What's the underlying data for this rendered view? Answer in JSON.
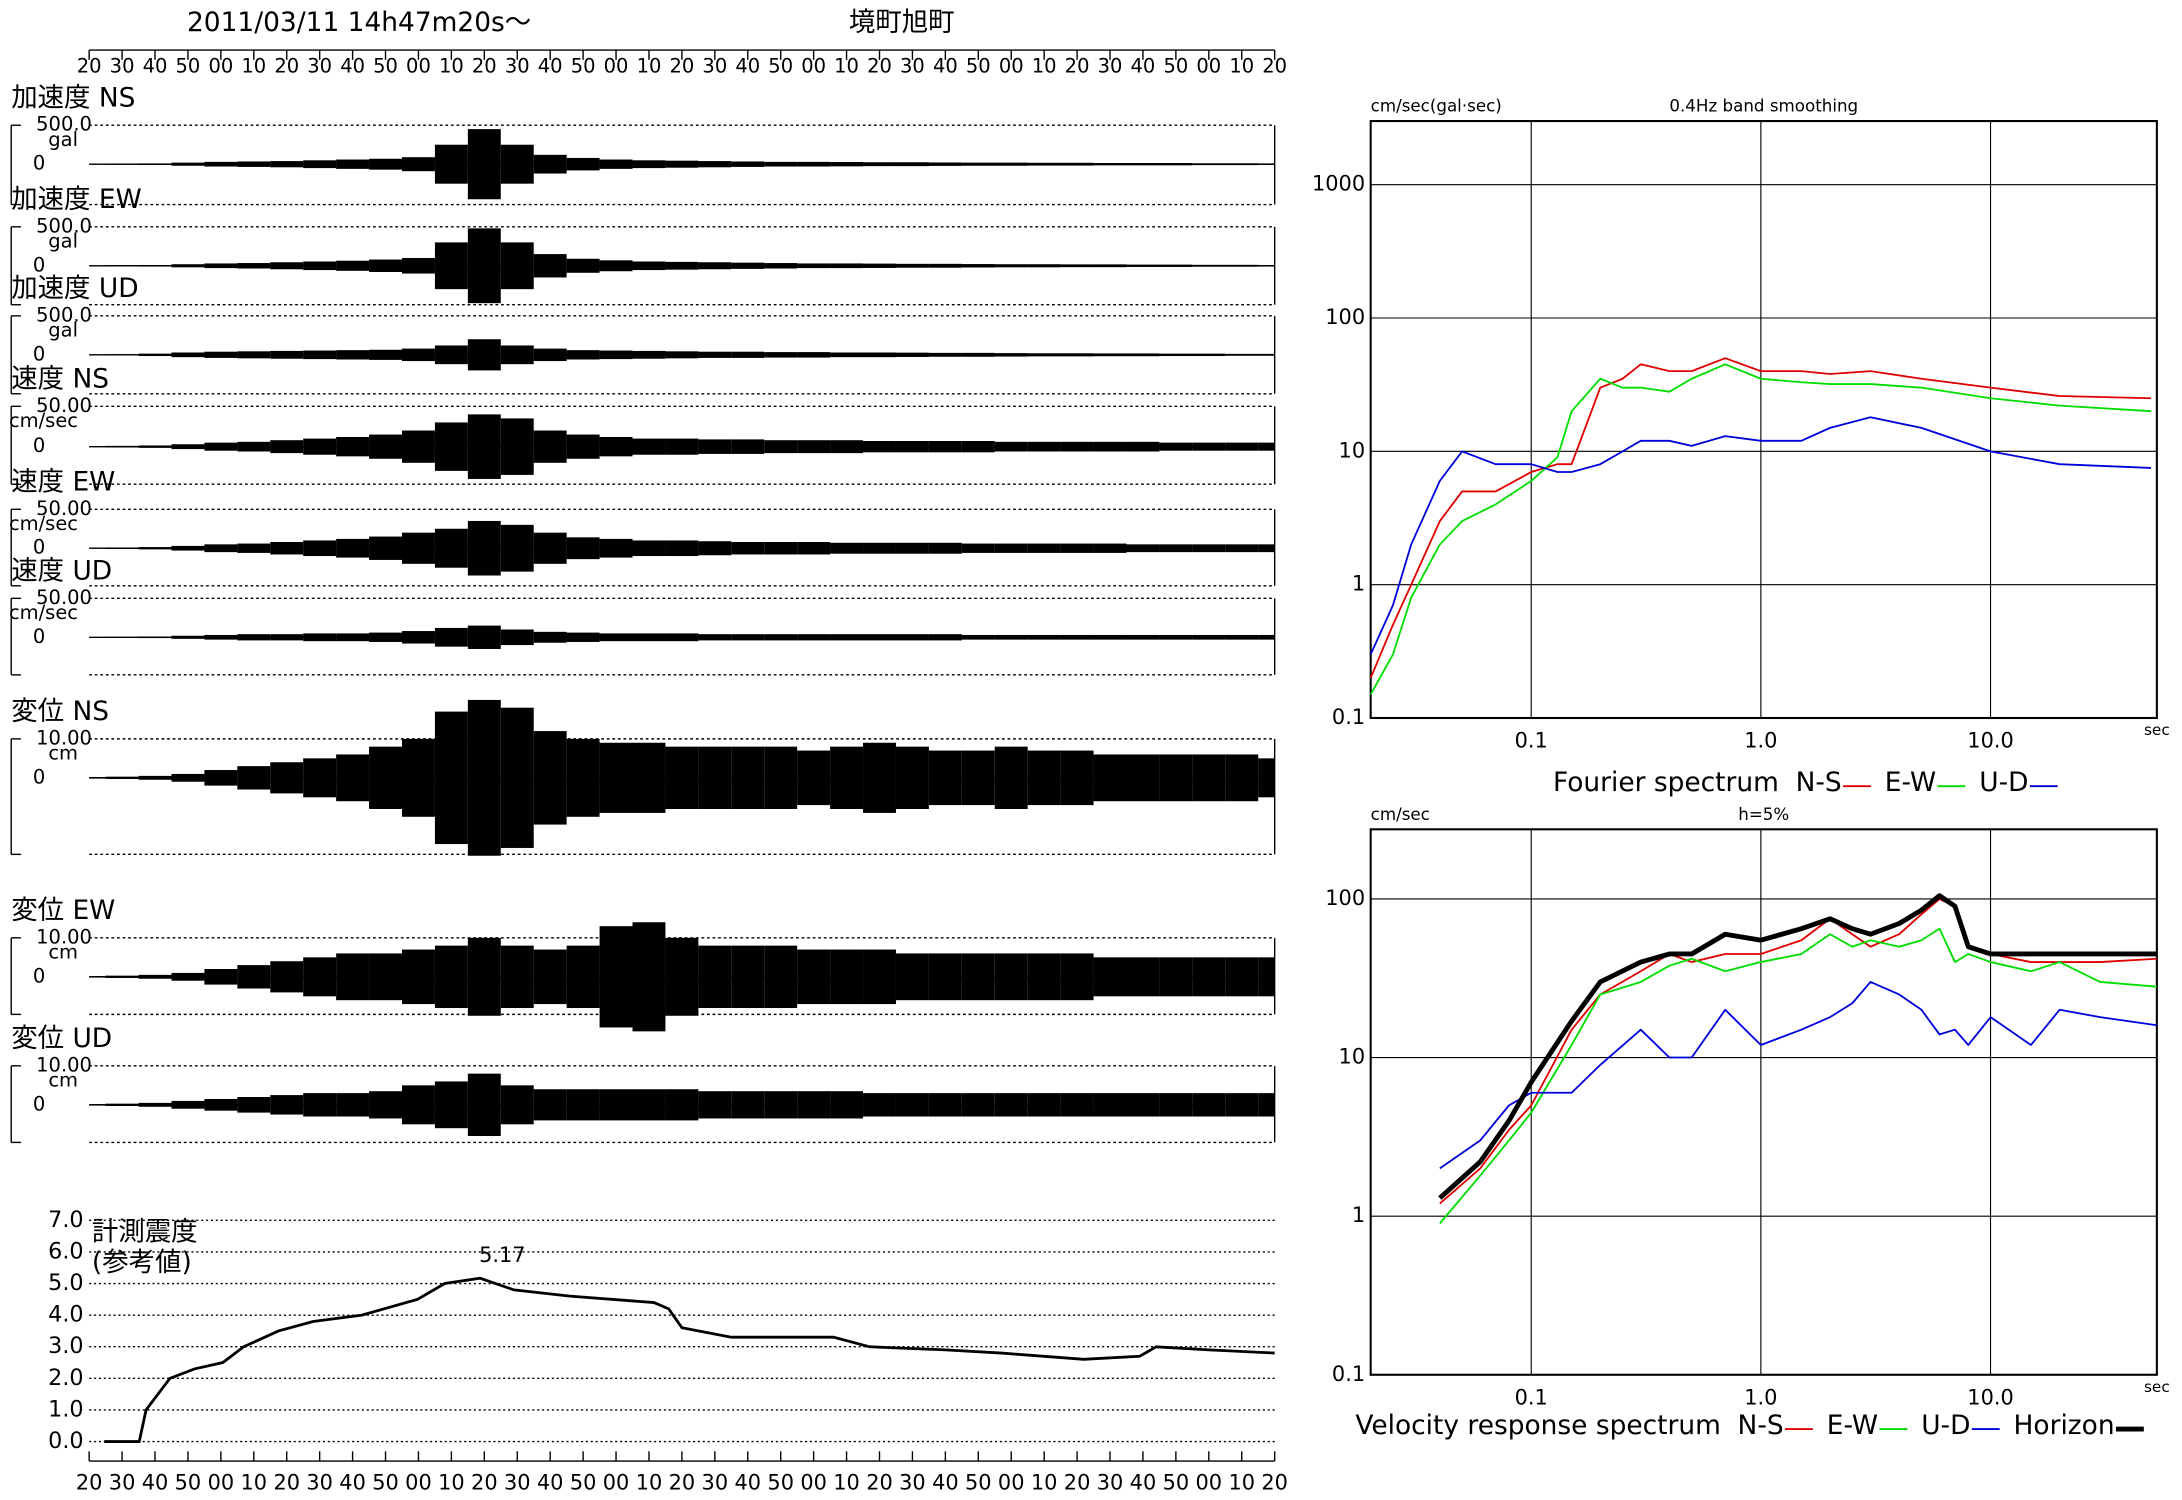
{
  "chart_data": [
    {
      "type": "waveform",
      "title": "2011/03/11  14h47m20s～",
      "subtitle": "境町旭町",
      "xlim": [
        0,
        360
      ],
      "xticks": [
        {
          "value": 0,
          "label": "20"
        },
        {
          "value": 10,
          "label": "30"
        },
        {
          "value": 20,
          "label": "40"
        },
        {
          "value": 30,
          "label": "50"
        },
        {
          "value": 40,
          "label": "00"
        },
        {
          "value": 50,
          "label": "10"
        },
        {
          "value": 60,
          "label": "20"
        },
        {
          "value": 70,
          "label": "30"
        },
        {
          "value": 80,
          "label": "40"
        },
        {
          "value": 90,
          "label": "50"
        },
        {
          "value": 100,
          "label": "00"
        },
        {
          "value": 110,
          "label": "10"
        },
        {
          "value": 120,
          "label": "20"
        },
        {
          "value": 130,
          "label": "30"
        },
        {
          "value": 140,
          "label": "40"
        },
        {
          "value": 150,
          "label": "50"
        },
        {
          "value": 160,
          "label": "00"
        },
        {
          "value": 170,
          "label": "10"
        },
        {
          "value": 180,
          "label": "20"
        },
        {
          "value": 190,
          "label": "30"
        },
        {
          "value": 200,
          "label": "40"
        },
        {
          "value": 210,
          "label": "50"
        },
        {
          "value": 220,
          "label": "00"
        },
        {
          "value": 230,
          "label": "10"
        },
        {
          "value": 240,
          "label": "20"
        },
        {
          "value": 250,
          "label": "30"
        },
        {
          "value": 260,
          "label": "40"
        },
        {
          "value": 270,
          "label": "50"
        },
        {
          "value": 280,
          "label": "00"
        },
        {
          "value": 290,
          "label": "10"
        },
        {
          "value": 300,
          "label": "20"
        },
        {
          "value": 310,
          "label": "30"
        },
        {
          "value": 320,
          "label": "40"
        },
        {
          "value": 330,
          "label": "50"
        },
        {
          "value": 340,
          "label": "00"
        },
        {
          "value": 350,
          "label": "10"
        },
        {
          "value": 360,
          "label": "20"
        }
      ],
      "x": [
        0,
        10,
        20,
        30,
        40,
        50,
        60,
        70,
        80,
        90,
        100,
        110,
        120,
        130,
        140,
        150,
        160,
        170,
        180,
        190,
        200,
        210,
        220,
        230,
        240,
        250,
        260,
        270,
        280,
        290,
        300,
        310,
        320,
        330,
        340,
        350,
        360
      ],
      "traces": [
        {
          "name": "加速度 NS",
          "scale": {
            "value": 500,
            "label": "500.0"
          },
          "unit": "gal",
          "zero": 0,
          "values": [
            5,
            8,
            10,
            20,
            30,
            35,
            40,
            50,
            60,
            70,
            90,
            250,
            450,
            250,
            120,
            80,
            60,
            50,
            45,
            40,
            35,
            30,
            30,
            28,
            25,
            25,
            22,
            20,
            20,
            18,
            18,
            15,
            15,
            15,
            12,
            12,
            10
          ]
        },
        {
          "name": "加速度 EW",
          "scale": {
            "value": 500,
            "label": "500.0"
          },
          "unit": "gal",
          "zero": 0,
          "values": [
            5,
            8,
            10,
            20,
            30,
            35,
            45,
            55,
            65,
            80,
            100,
            300,
            480,
            300,
            150,
            90,
            70,
            55,
            50,
            45,
            40,
            35,
            30,
            30,
            28,
            25,
            25,
            22,
            20,
            20,
            18,
            18,
            15,
            15,
            12,
            12,
            10
          ]
        },
        {
          "name": "加速度 UD",
          "scale": {
            "value": 500,
            "label": "500.0"
          },
          "unit": "gal",
          "zero": 0,
          "values": [
            5,
            8,
            15,
            30,
            40,
            45,
            50,
            55,
            60,
            65,
            80,
            120,
            200,
            120,
            80,
            60,
            55,
            50,
            45,
            40,
            40,
            35,
            35,
            30,
            30,
            28,
            25,
            25,
            22,
            20,
            20,
            18,
            18,
            15,
            15,
            12,
            12
          ]
        },
        {
          "name": "速度 NS",
          "scale": {
            "value": 50,
            "label": "50.00"
          },
          "unit": "cm/sec",
          "zero": 0,
          "values": [
            0.5,
            1,
            1.5,
            3,
            5,
            6,
            8,
            10,
            12,
            15,
            20,
            30,
            40,
            35,
            20,
            15,
            12,
            10,
            10,
            9,
            9,
            8,
            8,
            8,
            7,
            7,
            7,
            7,
            6,
            6,
            6,
            6,
            6,
            5,
            5,
            5,
            5
          ]
        },
        {
          "name": "速度 EW",
          "scale": {
            "value": 50,
            "label": "50.00"
          },
          "unit": "cm/sec",
          "zero": 0,
          "values": [
            0.5,
            1,
            1.5,
            3,
            5,
            6,
            8,
            10,
            12,
            15,
            20,
            25,
            35,
            30,
            20,
            14,
            12,
            10,
            10,
            9,
            8,
            8,
            8,
            7,
            7,
            7,
            7,
            6,
            6,
            6,
            6,
            6,
            5,
            5,
            5,
            5,
            5
          ]
        },
        {
          "name": "速度 UD",
          "scale": {
            "value": 50,
            "label": "50.00"
          },
          "unit": "cm/sec",
          "zero": 0,
          "values": [
            0.3,
            0.5,
            1,
            2,
            3,
            4,
            4,
            5,
            5,
            6,
            8,
            12,
            15,
            10,
            7,
            6,
            5,
            5,
            5,
            4,
            4,
            4,
            4,
            4,
            4,
            4,
            4,
            3,
            3,
            3,
            3,
            3,
            3,
            3,
            3,
            3,
            3
          ]
        },
        {
          "name": "変位 NS",
          "scale": {
            "value": 10,
            "label": "10.00"
          },
          "unit": "cm",
          "zero": 0,
          "values": [
            0.2,
            0.3,
            0.5,
            1,
            2,
            3,
            4,
            5,
            6,
            8,
            10,
            17,
            20,
            18,
            12,
            10,
            9,
            9,
            8,
            8,
            8,
            8,
            7,
            8,
            9,
            8,
            7,
            7,
            8,
            7,
            7,
            6,
            6,
            6,
            6,
            6,
            5
          ]
        },
        {
          "name": "変位 EW",
          "scale": {
            "value": 10,
            "label": "10.00"
          },
          "unit": "cm",
          "zero": 0,
          "values": [
            0.2,
            0.3,
            0.5,
            1,
            2,
            3,
            4,
            5,
            6,
            6,
            7,
            8,
            10,
            8,
            7,
            8,
            13,
            14,
            10,
            8,
            8,
            8,
            7,
            7,
            7,
            6,
            6,
            6,
            6,
            6,
            6,
            5,
            5,
            5,
            5,
            5,
            5
          ]
        },
        {
          "name": "変位 UD",
          "scale": {
            "value": 10,
            "label": "10.00"
          },
          "unit": "cm",
          "zero": 0,
          "values": [
            0.2,
            0.3,
            0.5,
            1,
            1.5,
            2,
            2.5,
            3,
            3,
            3.5,
            5,
            6,
            8,
            5,
            4,
            4,
            4,
            4,
            4,
            3.5,
            3.5,
            3.5,
            3.5,
            3.5,
            3,
            3,
            3,
            3,
            3,
            3,
            3,
            3,
            3,
            3,
            3,
            3,
            3
          ]
        }
      ]
    },
    {
      "type": "line",
      "title": [
        "計測震度",
        "(参考値)"
      ],
      "annotation": "5.17",
      "color": "#000000",
      "xlim": [
        0,
        360
      ],
      "xticks": [
        {
          "value": 0,
          "label": "20"
        },
        {
          "value": 10,
          "label": "30"
        },
        {
          "value": 20,
          "label": "40"
        },
        {
          "value": 30,
          "label": "50"
        },
        {
          "value": 40,
          "label": "00"
        },
        {
          "value": 50,
          "label": "10"
        },
        {
          "value": 60,
          "label": "20"
        },
        {
          "value": 70,
          "label": "30"
        },
        {
          "value": 80,
          "label": "40"
        },
        {
          "value": 90,
          "label": "50"
        },
        {
          "value": 100,
          "label": "00"
        },
        {
          "value": 110,
          "label": "10"
        },
        {
          "value": 120,
          "label": "20"
        },
        {
          "value": 130,
          "label": "30"
        },
        {
          "value": 140,
          "label": "40"
        },
        {
          "value": 150,
          "label": "50"
        },
        {
          "value": 160,
          "label": "00"
        },
        {
          "value": 170,
          "label": "10"
        },
        {
          "value": 180,
          "label": "20"
        },
        {
          "value": 190,
          "label": "30"
        },
        {
          "value": 200,
          "label": "40"
        },
        {
          "value": 210,
          "label": "50"
        },
        {
          "value": 220,
          "label": "00"
        },
        {
          "value": 230,
          "label": "10"
        },
        {
          "value": 240,
          "label": "20"
        },
        {
          "value": 250,
          "label": "30"
        },
        {
          "value": 260,
          "label": "40"
        },
        {
          "value": 270,
          "label": "50"
        },
        {
          "value": 280,
          "label": "00"
        },
        {
          "value": 290,
          "label": "10"
        },
        {
          "value": 300,
          "label": "20"
        },
        {
          "value": 310,
          "label": "30"
        },
        {
          "value": 320,
          "label": "40"
        },
        {
          "value": 330,
          "label": "50"
        },
        {
          "value": 340,
          "label": "00"
        },
        {
          "value": 350,
          "label": "10"
        },
        {
          "value": 360,
          "label": "20"
        }
      ],
      "ylim": [
        0,
        7
      ],
      "yticks": [
        {
          "value": 0,
          "label": "0.0"
        },
        {
          "value": 1,
          "label": "1.0"
        },
        {
          "value": 2,
          "label": "2.0"
        },
        {
          "value": 3,
          "label": "3.0"
        },
        {
          "value": 4,
          "label": "4.0"
        },
        {
          "value": 5,
          "label": "5.0"
        },
        {
          "value": 6,
          "label": "6.0"
        },
        {
          "value": 7,
          "label": "7.0"
        }
      ],
      "grid": true,
      "x": [
        4.6,
        15.2,
        17.3,
        24.5,
        32,
        40.6,
        46.9,
        57.5,
        68,
        82.8,
        99.7,
        108,
        118.7,
        129,
        146,
        171.5,
        176,
        180,
        195,
        226,
        237,
        260,
        277,
        302,
        319,
        324,
        340,
        360
      ],
      "values": [
        0,
        0,
        1.0,
        2.0,
        2.3,
        2.5,
        3.0,
        3.5,
        3.8,
        4.0,
        4.5,
        5.0,
        5.17,
        4.8,
        4.6,
        4.4,
        4.2,
        3.6,
        3.3,
        3.3,
        3.0,
        2.9,
        2.8,
        2.6,
        2.7,
        3.0,
        2.9,
        2.8
      ]
    },
    {
      "type": "line",
      "log_x": true,
      "log_y": true,
      "grid": true,
      "title": "0.4Hz band smoothing",
      "y_label": "cm/sec(gal·sec)",
      "x_label": "sec",
      "caption": "Fourier spectrum",
      "xlim": [
        0.02,
        53
      ],
      "ylim": [
        0.1,
        3000
      ],
      "xticks": [
        0.1,
        {
          "value": 1,
          "label": "1.0"
        },
        {
          "value": 10,
          "label": "10.0"
        }
      ],
      "yticks": [
        0.1,
        1,
        10,
        100,
        1000
      ],
      "x": [
        0.02,
        0.025,
        0.03,
        0.04,
        0.05,
        0.07,
        0.1,
        0.13,
        0.15,
        0.2,
        0.25,
        0.3,
        0.4,
        0.5,
        0.7,
        1.0,
        1.5,
        2,
        3,
        5,
        10,
        20,
        50
      ],
      "series": [
        {
          "name": "N-S",
          "color": "#e00000",
          "values": [
            0.2,
            0.5,
            1,
            3,
            5,
            5,
            7,
            8,
            8,
            30,
            35,
            45,
            40,
            40,
            50,
            40,
            40,
            38,
            40,
            35,
            30,
            26,
            25
          ]
        },
        {
          "name": "E-W",
          "color": "#00dd00",
          "values": [
            0.15,
            0.3,
            0.8,
            2,
            3,
            4,
            6,
            9,
            20,
            35,
            30,
            30,
            28,
            35,
            45,
            35,
            33,
            32,
            32,
            30,
            25,
            22,
            20
          ]
        },
        {
          "name": "U-D",
          "color": "#0000dd",
          "values": [
            0.3,
            0.7,
            2,
            6,
            10,
            8,
            8,
            7,
            7,
            8,
            10,
            12,
            12,
            11,
            13,
            12,
            12,
            15,
            18,
            15,
            10,
            8,
            7.5
          ]
        }
      ]
    },
    {
      "type": "line",
      "log_x": true,
      "log_y": true,
      "grid": true,
      "title": "h=5%",
      "y_label": "cm/sec",
      "x_label": "sec",
      "caption": "Velocity response spectrum",
      "xlim": [
        0.02,
        53
      ],
      "ylim": [
        0.1,
        275
      ],
      "xticks": [
        0.1,
        {
          "value": 1,
          "label": "1.0"
        },
        {
          "value": 10,
          "label": "10.0"
        }
      ],
      "yticks": [
        0.1,
        1,
        10,
        100
      ],
      "x": [
        0.04,
        0.06,
        0.08,
        0.1,
        0.15,
        0.2,
        0.3,
        0.4,
        0.5,
        0.7,
        1.0,
        1.5,
        2,
        2.5,
        3,
        4,
        5,
        6,
        7,
        8,
        10,
        15,
        20,
        30,
        53
      ],
      "series": [
        {
          "name": "N-S",
          "color": "#e00000",
          "values": [
            1.2,
            2,
            3.5,
            5,
            15,
            25,
            35,
            45,
            40,
            45,
            45,
            55,
            75,
            60,
            50,
            60,
            80,
            100,
            90,
            50,
            45,
            40,
            40,
            40,
            42
          ]
        },
        {
          "name": "E-W",
          "color": "#00dd00",
          "values": [
            0.9,
            1.8,
            3,
            4.5,
            12,
            25,
            30,
            38,
            42,
            35,
            40,
            45,
            60,
            50,
            55,
            50,
            55,
            65,
            40,
            45,
            40,
            35,
            40,
            30,
            28
          ]
        },
        {
          "name": "U-D",
          "color": "#0000dd",
          "values": [
            2,
            3,
            5,
            6,
            6,
            9,
            15,
            10,
            10,
            20,
            12,
            15,
            18,
            22,
            30,
            25,
            20,
            14,
            15,
            12,
            18,
            12,
            20,
            18,
            16
          ]
        },
        {
          "name": "Horizon",
          "color": "#000000",
          "line_width": 3.5,
          "values": [
            1.3,
            2.2,
            4,
            7,
            17,
            30,
            40,
            45,
            45,
            60,
            55,
            65,
            75,
            65,
            60,
            70,
            85,
            105,
            90,
            50,
            45,
            45,
            45,
            45,
            45
          ]
        }
      ]
    }
  ]
}
